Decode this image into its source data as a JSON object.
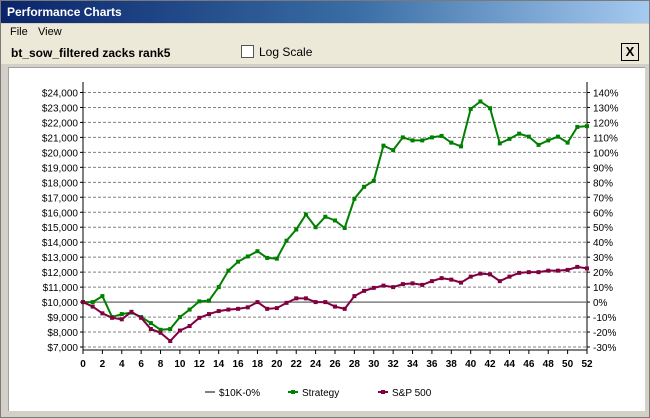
{
  "window": {
    "title": "Performance Charts"
  },
  "menu": {
    "file": "File",
    "view": "View"
  },
  "toolbar": {
    "chart_name": "bt_sow_filtered zacks rank5",
    "log_scale_label": "Log Scale",
    "log_scale_checked": false,
    "close_label": "X"
  },
  "chart_data": {
    "type": "line",
    "x": [
      0,
      1,
      2,
      3,
      4,
      5,
      6,
      7,
      8,
      9,
      10,
      11,
      12,
      13,
      14,
      15,
      16,
      17,
      18,
      19,
      20,
      21,
      22,
      23,
      24,
      25,
      26,
      27,
      28,
      29,
      30,
      31,
      32,
      33,
      34,
      35,
      36,
      37,
      38,
      39,
      40,
      41,
      42,
      43,
      44,
      45,
      46,
      47,
      48,
      49,
      50,
      51,
      52
    ],
    "x_ticks": [
      "0",
      "2",
      "4",
      "6",
      "8",
      "10",
      "12",
      "14",
      "16",
      "18",
      "20",
      "22",
      "24",
      "26",
      "28",
      "30",
      "32",
      "34",
      "36",
      "38",
      "40",
      "42",
      "44",
      "46",
      "48",
      "50",
      "52"
    ],
    "xlim": [
      0,
      52
    ],
    "y_left_ticks": [
      "$24,000",
      "$23,000",
      "$22,000",
      "$21,000",
      "$20,000",
      "$19,000",
      "$18,000",
      "$17,000",
      "$16,000",
      "$15,000",
      "$14,000",
      "$13,000",
      "$12,000",
      "$11,000",
      "$10,000",
      "$9,000",
      "$8,000",
      "$7,000"
    ],
    "y_right_ticks": [
      "140%",
      "130%",
      "120%",
      "110%",
      "100%",
      "90%",
      "80%",
      "70%",
      "60%",
      "50%",
      "40%",
      "30%",
      "20%",
      "10%",
      "0%",
      "-10%",
      "-20%",
      "-30%"
    ],
    "ylim": [
      6800,
      24300
    ],
    "grid": true,
    "legend_position": "bottom",
    "series": [
      {
        "name": "$10K-0%",
        "color": "#808080",
        "values": [
          10000,
          10000,
          10000,
          10000,
          10000,
          10000,
          10000,
          10000,
          10000,
          10000,
          10000,
          10000,
          10000,
          10000,
          10000,
          10000,
          10000,
          10000,
          10000,
          10000,
          10000,
          10000,
          10000,
          10000,
          10000,
          10000,
          10000,
          10000,
          10000,
          10000,
          10000,
          10000,
          10000,
          10000,
          10000,
          10000,
          10000,
          10000,
          10000,
          10000,
          10000,
          10000,
          10000,
          10000,
          10000,
          10000,
          10000,
          10000,
          10000,
          10000,
          10000,
          10000,
          10000
        ]
      },
      {
        "name": "Strategy",
        "color": "#008000",
        "values": [
          10000,
          10000,
          10400,
          9000,
          9200,
          9300,
          9000,
          8600,
          8150,
          8200,
          9000,
          9500,
          10050,
          10100,
          11000,
          12100,
          12700,
          13050,
          13400,
          12950,
          12900,
          14100,
          14850,
          15850,
          15000,
          15700,
          15450,
          14950,
          16900,
          17700,
          18100,
          20450,
          20150,
          21000,
          20800,
          20800,
          21000,
          21100,
          20650,
          20400,
          22900,
          23400,
          22950,
          20600,
          20900,
          21250,
          21050,
          20500,
          20800,
          21050,
          20650,
          21700,
          21750
        ]
      },
      {
        "name": "S&P 500",
        "color": "#800040",
        "values": [
          10000,
          9700,
          9250,
          8950,
          8850,
          9350,
          8950,
          8200,
          7950,
          7400,
          8100,
          8400,
          8950,
          9200,
          9400,
          9500,
          9550,
          9650,
          10000,
          9550,
          9600,
          9950,
          10250,
          10250,
          10000,
          10000,
          9700,
          9550,
          10400,
          10750,
          10950,
          11100,
          11000,
          11200,
          11250,
          11150,
          11400,
          11600,
          11500,
          11300,
          11700,
          11900,
          11850,
          11400,
          11700,
          11950,
          12000,
          12000,
          12100,
          12100,
          12150,
          12350,
          12250
        ]
      }
    ]
  }
}
